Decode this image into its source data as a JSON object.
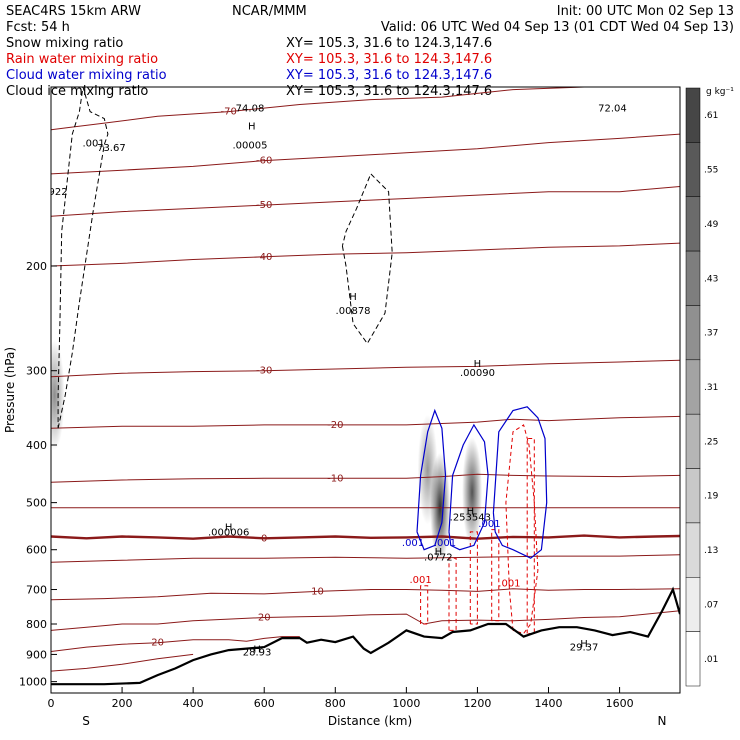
{
  "header": {
    "model": "SEAC4RS 15km ARW",
    "forecast": "Fcst:   54 h",
    "center": "NCAR/MMM",
    "init": "Init: 00 UTC Mon 02 Sep 13",
    "valid": "Valid: 06 UTC Wed 04 Sep 13 (01 CDT Wed 04 Sep 13)"
  },
  "fields": [
    {
      "name": "Snow mixing ratio",
      "xy": "XY= 105.3, 31.6 to 124.3,147.6",
      "color": "#000000"
    },
    {
      "name": "Rain water mixing ratio",
      "xy": "XY= 105.3, 31.6 to 124.3,147.6",
      "color": "#e00000"
    },
    {
      "name": "Cloud water mixing ratio",
      "xy": "XY= 105.3, 31.6 to 124.3,147.6",
      "color": "#0000cc"
    },
    {
      "name": "Cloud ice mixing ratio",
      "xy": "XY= 105.3, 31.6 to 124.3,147.6",
      "color": "#000000"
    }
  ],
  "colors": {
    "temperature": "#8b1a1a",
    "freezing_line": "#8b1a1a",
    "terrain": "#000000",
    "rain": "#e00000",
    "cloud_water": "#0000cc"
  },
  "chart_data": {
    "type": "contour",
    "xlabel": "Distance (km)",
    "ylabel": "Pressure (hPa)",
    "x_ticks": [
      "0",
      "200",
      "400",
      "600",
      "800",
      "1000",
      "1200",
      "1400",
      "1600"
    ],
    "y_ticks": [
      "200",
      "300",
      "400",
      "500",
      "600",
      "700",
      "800",
      "900",
      "1000"
    ],
    "xlim": [
      0,
      1770
    ],
    "ylim": [
      1045,
      100
    ],
    "left_end": "S",
    "right_end": "N",
    "colorbar": {
      "unit": "g kg⁻¹",
      "labels": [
        ".61",
        ".55",
        ".49",
        ".43",
        ".37",
        ".31",
        ".25",
        ".19",
        ".13",
        ".07",
        ".01"
      ]
    },
    "temperature_contours": [
      {
        "label": "-70",
        "x": [
          0,
          150,
          300,
          500,
          700,
          900,
          1100,
          1300,
          1500,
          1770
        ],
        "y": [
          118,
          115,
          112,
          110,
          107,
          105,
          104,
          101,
          100,
          100
        ]
      },
      {
        "label": "-60",
        "x": [
          0,
          200,
          400,
          600,
          800,
          1000,
          1200,
          1400,
          1600,
          1770
        ],
        "y": [
          140,
          138,
          136,
          133,
          131,
          129,
          127,
          124,
          122,
          120
        ]
      },
      {
        "label": "-50",
        "x": [
          0,
          200,
          400,
          600,
          800,
          1000,
          1200,
          1400,
          1600,
          1770
        ],
        "y": [
          165,
          162,
          160,
          158,
          156,
          154,
          152,
          150,
          150,
          147
        ]
      },
      {
        "label": "-40",
        "x": [
          0,
          200,
          400,
          600,
          800,
          1000,
          1200,
          1400,
          1600,
          1770
        ],
        "y": [
          200,
          198,
          195,
          193,
          191,
          190,
          188,
          186,
          185,
          183
        ]
      },
      {
        "label": "-30",
        "x": [
          0,
          200,
          400,
          600,
          800,
          1000,
          1200,
          1400,
          1600,
          1770
        ],
        "y": [
          307,
          303,
          301,
          300,
          298,
          296,
          295,
          292,
          290,
          288
        ]
      },
      {
        "label": "-20",
        "x": [
          0,
          200,
          400,
          600,
          800,
          1000,
          1100,
          1200,
          1300,
          1400,
          1600,
          1770
        ],
        "y": [
          375,
          372,
          372,
          370,
          370,
          370,
          368,
          366,
          362,
          364,
          360,
          358
        ]
      },
      {
        "label": "-10",
        "x": [
          0,
          200,
          400,
          600,
          800,
          1000,
          1100,
          1200,
          1300,
          1400,
          1600,
          1770
        ],
        "y": [
          462,
          458,
          456,
          455,
          455,
          455,
          452,
          448,
          450,
          451,
          452,
          450
        ]
      },
      {
        "label": "",
        "x": [
          0,
          200,
          400,
          600,
          800,
          1000,
          1200,
          1400,
          1600,
          1770
        ],
        "y": [
          510,
          510,
          510,
          510,
          510,
          510,
          510,
          510,
          510,
          510
        ]
      },
      {
        "label": "0",
        "x": [
          0,
          100,
          200,
          300,
          400,
          500,
          600,
          700,
          800,
          900,
          1000,
          1100,
          1200,
          1300,
          1400,
          1500,
          1600,
          1700,
          1770
        ],
        "y": [
          570,
          574,
          570,
          572,
          575,
          570,
          574,
          572,
          570,
          573,
          572,
          570,
          575,
          571,
          572,
          568,
          572,
          570,
          569
        ]
      },
      {
        "label": "",
        "x": [
          0,
          200,
          400,
          600,
          800,
          1000,
          1200,
          1400,
          1600,
          1770
        ],
        "y": [
          630,
          625,
          620,
          620,
          618,
          620,
          618,
          615,
          615,
          612
        ]
      },
      {
        "label": "10",
        "x": [
          0,
          150,
          300,
          450,
          600,
          750,
          900,
          1000,
          1100,
          1200,
          1300,
          1400,
          1500,
          1600,
          1770
        ],
        "y": [
          728,
          725,
          720,
          710,
          712,
          705,
          700,
          700,
          702,
          705,
          698,
          702,
          700,
          700,
          698
        ]
      },
      {
        "label": "20",
        "x": [
          0,
          100,
          200,
          300,
          400,
          500,
          600,
          700,
          800,
          900,
          1000,
          1050,
          1100,
          1200,
          1300,
          1400,
          1500,
          1600,
          1770
        ],
        "y": [
          820,
          810,
          800,
          800,
          790,
          785,
          780,
          778,
          776,
          772,
          770,
          800,
          790,
          788,
          790,
          786,
          780,
          778,
          760
        ]
      },
      {
        "label": "20",
        "x": [
          0,
          100,
          200,
          300,
          400,
          500,
          550,
          600,
          650,
          700
        ],
        "y": [
          890,
          875,
          865,
          860,
          850,
          850,
          855,
          846,
          840,
          840
        ]
      },
      {
        "label": "",
        "x": [
          0,
          100,
          200,
          300,
          400
        ],
        "y": [
          960,
          950,
          935,
          915,
          900
        ]
      }
    ],
    "terrain": {
      "x": [
        0,
        150,
        250,
        300,
        350,
        400,
        450,
        500,
        550,
        600,
        650,
        700,
        720,
        760,
        800,
        850,
        880,
        900,
        950,
        1000,
        1050,
        1100,
        1130,
        1180,
        1230,
        1280,
        1330,
        1380,
        1430,
        1480,
        1530,
        1580,
        1630,
        1680,
        1720,
        1750,
        1770
      ],
      "y": [
        1010,
        1010,
        1005,
        975,
        950,
        920,
        900,
        885,
        880,
        875,
        845,
        845,
        860,
        850,
        858,
        840,
        880,
        895,
        860,
        820,
        840,
        845,
        825,
        820,
        800,
        800,
        840,
        820,
        810,
        810,
        820,
        835,
        825,
        840,
        760,
        700,
        770
      ]
    },
    "snow_contours": [
      {
        "label": ".001",
        "x": [
          20,
          40,
          60,
          80,
          120,
          150,
          160,
          150,
          110,
          90,
          80,
          60,
          30,
          25,
          20,
          20
        ],
        "y": [
          375,
          330,
          280,
          230,
          160,
          125,
          120,
          113,
          110,
          100,
          110,
          120,
          175,
          250,
          330,
          375
        ]
      },
      {
        "label": ".001",
        "x": [
          820,
          830,
          850,
          890,
          940,
          960,
          950,
          900,
          860,
          830,
          820
        ],
        "y": [
          185,
          200,
          250,
          270,
          240,
          190,
          150,
          140,
          160,
          175,
          185
        ]
      }
    ],
    "rain_contours": [
      {
        "label": ".001",
        "x": [
          1040,
          1040,
          1060,
          1060,
          1040
        ],
        "y": [
          800,
          690,
          690,
          800,
          800
        ]
      },
      {
        "label": "",
        "x": [
          1120,
          1120,
          1140,
          1140,
          1120
        ],
        "y": [
          820,
          620,
          620,
          820,
          820
        ]
      },
      {
        "label": "",
        "x": [
          1180,
          1180,
          1200,
          1200,
          1180
        ],
        "y": [
          800,
          560,
          560,
          800,
          800
        ]
      },
      {
        "label": "",
        "x": [
          1240,
          1240,
          1260,
          1260,
          1240
        ],
        "y": [
          790,
          555,
          555,
          790,
          790
        ]
      },
      {
        "label": ".001",
        "x": [
          1300,
          1290,
          1280,
          1300,
          1330,
          1345,
          1360,
          1370,
          1350,
          1330,
          1300
        ],
        "y": [
          820,
          700,
          500,
          380,
          370,
          400,
          500,
          650,
          800,
          830,
          820
        ]
      },
      {
        "label": "",
        "x": [
          1340,
          1340,
          1360,
          1360,
          1340
        ],
        "y": [
          830,
          390,
          390,
          830,
          830
        ]
      }
    ],
    "cloud_water_contours": [
      {
        "label": ".001",
        "x": [
          1030,
          1040,
          1060,
          1080,
          1100,
          1110,
          1100,
          1080,
          1050,
          1030
        ],
        "y": [
          560,
          450,
          380,
          350,
          375,
          450,
          540,
          590,
          600,
          560
        ]
      },
      {
        "label": ".001",
        "x": [
          1120,
          1130,
          1160,
          1190,
          1220,
          1230,
          1220,
          1190,
          1150,
          1125,
          1120
        ],
        "y": [
          560,
          450,
          400,
          370,
          395,
          450,
          540,
          590,
          600,
          590,
          560
        ]
      },
      {
        "label": ".001",
        "x": [
          1245,
          1260,
          1300,
          1340,
          1370,
          1390,
          1395,
          1380,
          1350,
          1300,
          1270,
          1250,
          1245
        ],
        "y": [
          520,
          380,
          350,
          345,
          360,
          390,
          500,
          600,
          620,
          600,
          590,
          560,
          520
        ]
      }
    ],
    "annotations": [
      {
        "text": "H",
        "x": 565,
        "y": 118
      },
      {
        "text": ".00005",
        "x": 560,
        "y": 127
      },
      {
        "text": "74.08",
        "x": 560,
        "y": 110
      },
      {
        "text": ".001",
        "x": 120,
        "y": 126
      },
      {
        "text": "73.67",
        "x": 170,
        "y": 128
      },
      {
        "text": "922",
        "x": 20,
        "y": 152
      },
      {
        "text": "H",
        "x": 850,
        "y": 228
      },
      {
        "text": ".00878",
        "x": 850,
        "y": 241
      },
      {
        "text": "H",
        "x": 1200,
        "y": 296
      },
      {
        "text": ".00090",
        "x": 1200,
        "y": 306
      },
      {
        "text": "H",
        "x": 1180,
        "y": 524
      },
      {
        "text": ".253543",
        "x": 1180,
        "y": 536
      },
      {
        "text": "H",
        "x": 500,
        "y": 557
      },
      {
        "text": ".000006",
        "x": 500,
        "y": 568
      },
      {
        "text": "H",
        "x": 1090,
        "y": 613
      },
      {
        "text": ".0772",
        "x": 1090,
        "y": 625
      },
      {
        "text": "H",
        "x": 1500,
        "y": 875
      },
      {
        "text": "29.37",
        "x": 1500,
        "y": 887
      },
      {
        "text": "H",
        "x": 580,
        "y": 893
      },
      {
        "text": "28.93",
        "x": 580,
        "y": 904
      },
      {
        "text": "72.04",
        "x": 1580,
        "y": 110
      }
    ],
    "shading": [
      {
        "x": 1095,
        "y": 510,
        "intensity": 0.9
      },
      {
        "x": 1185,
        "y": 480,
        "intensity": 0.75
      },
      {
        "x": 1060,
        "y": 440,
        "intensity": 0.45
      },
      {
        "x": 10,
        "y": 330,
        "intensity": 0.5
      }
    ]
  }
}
